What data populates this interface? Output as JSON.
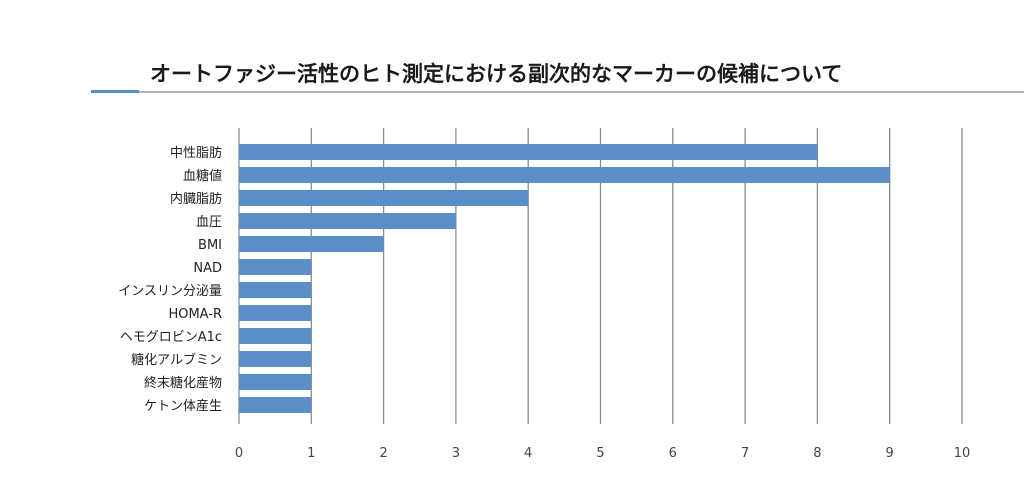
{
  "chart_data": {
    "type": "bar",
    "orientation": "horizontal",
    "title": "オートファジー活性のヒト測定における副次的なマーカーの候補について",
    "xlabel": "",
    "ylabel": "",
    "categories": [
      "中性脂肪",
      "血糖値",
      "内臓脂肪",
      "血圧",
      "BMI",
      "NAD",
      "インスリン分泌量",
      "HOMA-R",
      "ヘモグロビンA1c",
      "糖化アルブミン",
      "終末糖化産物",
      "ケトン体産生"
    ],
    "values": [
      8,
      9,
      4,
      3,
      2,
      1,
      1,
      1,
      1,
      1,
      1,
      1
    ],
    "xlim": [
      0,
      10
    ],
    "xticks": [
      0,
      1,
      2,
      3,
      4,
      5,
      6,
      7,
      8,
      9,
      10
    ],
    "grid": "vertical",
    "legend": "none",
    "bar_color": "#5b8ec9"
  }
}
